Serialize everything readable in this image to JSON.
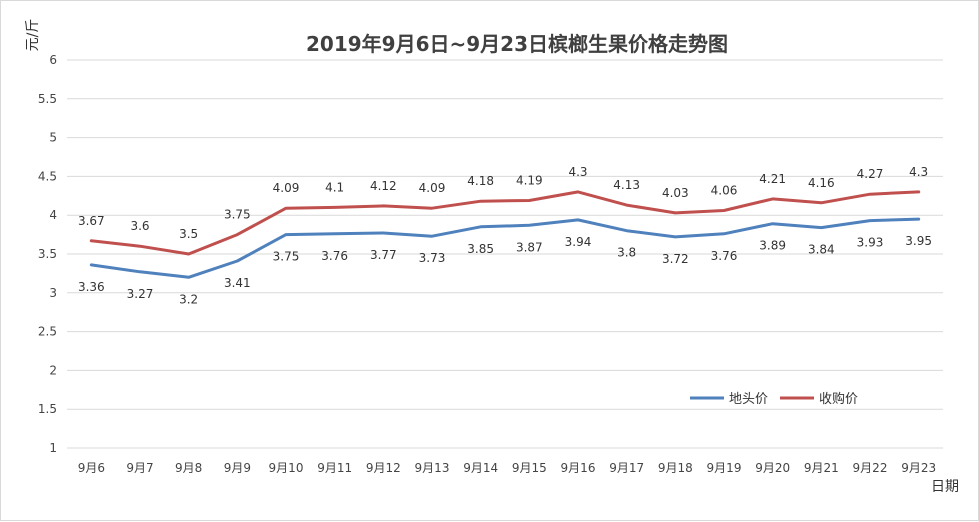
{
  "chart_data": {
    "type": "line",
    "title": "2019年9月6日~9月23日槟榔生果价格走势图",
    "ylabel": "元/斤",
    "xlabel": "日期",
    "ylim": [
      1,
      6
    ],
    "yticks": [
      "1",
      "1.5",
      "2",
      "2.5",
      "3",
      "3.5",
      "4",
      "4.5",
      "5",
      "5.5",
      "6"
    ],
    "grid": true,
    "legend_position": "bottom-right",
    "categories": [
      "9月6",
      "9月7",
      "9月8",
      "9月9",
      "9月10",
      "9月11",
      "9月12",
      "9月13",
      "9月14",
      "9月15",
      "9月16",
      "9月17",
      "9月18",
      "9月19",
      "9月20",
      "9月21",
      "9月22",
      "9月23"
    ],
    "series": [
      {
        "name": "地头价",
        "color": "#4f81bd",
        "label_position": "below",
        "values": [
          3.36,
          3.27,
          3.2,
          3.41,
          3.75,
          3.76,
          3.77,
          3.73,
          3.85,
          3.87,
          3.94,
          3.8,
          3.72,
          3.76,
          3.89,
          3.84,
          3.93,
          3.95
        ]
      },
      {
        "name": "收购价",
        "color": "#c0504d",
        "label_position": "above",
        "values": [
          3.67,
          3.6,
          3.5,
          3.75,
          4.09,
          4.1,
          4.12,
          4.09,
          4.18,
          4.19,
          4.3,
          4.13,
          4.03,
          4.06,
          4.21,
          4.16,
          4.27,
          4.3
        ]
      }
    ]
  }
}
